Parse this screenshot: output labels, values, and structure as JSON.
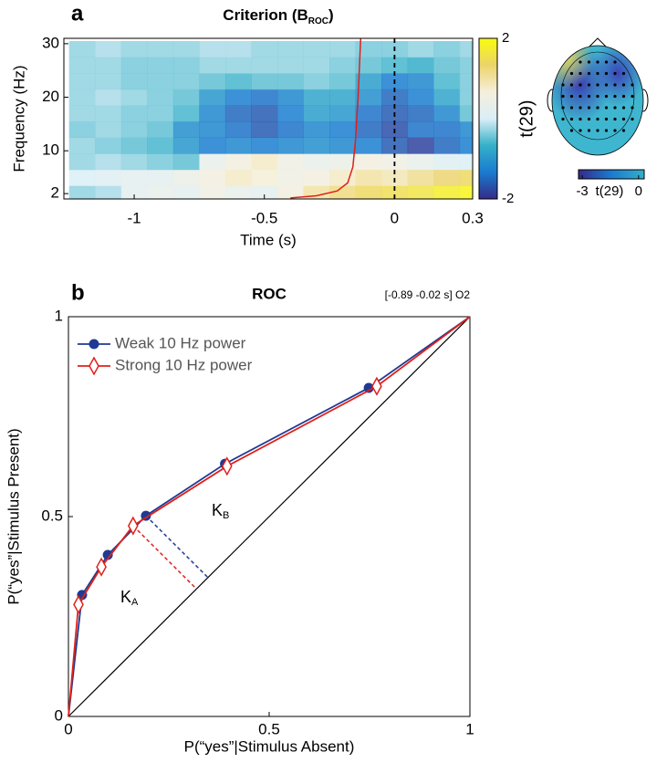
{
  "chart_data": [
    {
      "type": "heatmap",
      "label": "a",
      "title": "Criterion (B",
      "title_sub": "ROC",
      "title_end": ")",
      "xlabel": "Time (s)",
      "ylabel": "Frequency (Hz)",
      "x": [
        -1.2,
        -1.1,
        -1.0,
        -0.9,
        -0.8,
        -0.7,
        -0.6,
        -0.5,
        -0.4,
        -0.3,
        -0.2,
        -0.1,
        0.0,
        0.1,
        0.2,
        0.3
      ],
      "y": [
        2,
        5,
        8,
        11,
        14,
        17,
        20,
        23,
        26,
        29
      ],
      "z": [
        [
          -0.3,
          -0.2,
          0.2,
          0.3,
          0.2,
          0.5,
          0.3,
          0.2,
          0.6,
          1.0,
          1.2,
          1.4,
          1.5,
          1.6,
          1.8,
          1.9
        ],
        [
          0,
          0.1,
          0.2,
          0.2,
          0.4,
          0.6,
          0.8,
          0.7,
          0.5,
          0.6,
          0.8,
          1.0,
          0.9,
          1.1,
          1.3,
          1.4
        ],
        [
          -0.3,
          -0.2,
          -0.3,
          -0.4,
          -0.5,
          0.3,
          0.6,
          0.8,
          0.5,
          0.3,
          0.4,
          0.6,
          0.5,
          0.3,
          0.1,
          0
        ],
        [
          -0.3,
          -0.4,
          -0.5,
          -0.6,
          -1.0,
          -1.3,
          -1.2,
          -1.3,
          -1.2,
          -1.1,
          -1.2,
          -1.3,
          -1.6,
          -1.8,
          -1.5,
          -1.3
        ],
        [
          -0.4,
          -0.3,
          -0.4,
          -0.5,
          -1.1,
          -1.2,
          -1.4,
          -1.6,
          -1.4,
          -1.2,
          -1.3,
          -1.5,
          -1.7,
          -1.4,
          -1.4,
          -1.2
        ],
        [
          -0.3,
          -0.3,
          -0.4,
          -0.4,
          -0.6,
          -1.2,
          -1.5,
          -1.6,
          -1.3,
          -0.9,
          -1.0,
          -1.4,
          -1.6,
          -1.5,
          -1.2,
          -0.5
        ],
        [
          -0.3,
          -0.2,
          -0.3,
          -0.4,
          -0.5,
          -1.0,
          -1.3,
          -1.4,
          -1.2,
          -0.8,
          -0.8,
          -1.1,
          -1.5,
          -1.3,
          -0.8,
          -0.4
        ],
        [
          -0.3,
          -0.3,
          -0.4,
          -0.4,
          -0.4,
          -0.5,
          -0.6,
          -0.5,
          -0.5,
          -0.4,
          -0.5,
          -0.9,
          -1.3,
          -1.2,
          -0.6,
          -0.4
        ],
        [
          -0.3,
          -0.3,
          -0.4,
          -0.4,
          -0.4,
          -0.3,
          -0.3,
          -0.3,
          -0.3,
          -0.3,
          -0.4,
          -0.5,
          -0.6,
          -0.7,
          -0.5,
          -0.4
        ],
        [
          -0.3,
          -0.2,
          -0.3,
          -0.3,
          -0.3,
          -0.2,
          -0.2,
          -0.3,
          -0.3,
          -0.3,
          -0.3,
          -0.4,
          -0.4,
          -0.3,
          -0.4,
          -0.3
        ]
      ],
      "xlim": [
        -1.27,
        0.3
      ],
      "xticks": [
        -1,
        -0.5,
        0,
        0.3
      ],
      "ylim": [
        1,
        31
      ],
      "yticks": [
        2,
        10,
        20,
        30
      ],
      "colormap": [
        "#352a87",
        "#1a7bd0",
        "#35b0c8",
        "#dbeef6",
        "#f5efdc",
        "#ecd46a",
        "#f9fb0e"
      ],
      "colorbar": {
        "label": "t(29)",
        "clim": [
          -2,
          2
        ],
        "ticks": [
          2,
          -2
        ]
      },
      "marker_line": {
        "x": 0,
        "color": "#000000"
      },
      "overlay": {
        "color": "#e0201b",
        "x": [
          -0.4,
          -0.3,
          -0.22,
          -0.18,
          -0.16,
          -0.15,
          -0.14,
          -0.13
        ],
        "y": [
          1.2,
          1.6,
          2.5,
          4,
          7,
          12,
          20,
          31
        ]
      },
      "topo_colorbar": {
        "label": "t(29)",
        "clim": [
          -3.2,
          0.3
        ],
        "ticks": [
          -3,
          0
        ]
      }
    },
    {
      "type": "roc",
      "label": "b",
      "title": "ROC",
      "note": "[-0.89 -0.02 s] O2",
      "xlabel": "P(“yes”|Stimulus Absent)",
      "ylabel": "P(“yes”|Stimulus Present)",
      "xlim": [
        0,
        1
      ],
      "ylim": [
        0,
        1
      ],
      "xticks": [
        0,
        0.5,
        1
      ],
      "yticks": [
        0,
        0.5,
        1
      ],
      "legend": "upper left",
      "series": [
        {
          "name": "Weak 10 Hz power",
          "color": "#1f3a93",
          "marker": "circle",
          "x": [
            0,
            0.034,
            0.098,
            0.193,
            0.39,
            0.748,
            1
          ],
          "y": [
            0,
            0.304,
            0.404,
            0.502,
            0.632,
            0.822,
            1
          ]
        },
        {
          "name": "Strong 10 Hz power",
          "color": "#e0201b",
          "marker": "diamond",
          "x": [
            0,
            0.025,
            0.082,
            0.161,
            0.395,
            0.768,
            1
          ],
          "y": [
            0,
            0.28,
            0.374,
            0.477,
            0.626,
            0.826,
            1
          ]
        }
      ],
      "annotations": [
        {
          "text": "K",
          "sub": "A"
        },
        {
          "text": "K",
          "sub": "B"
        }
      ]
    }
  ]
}
